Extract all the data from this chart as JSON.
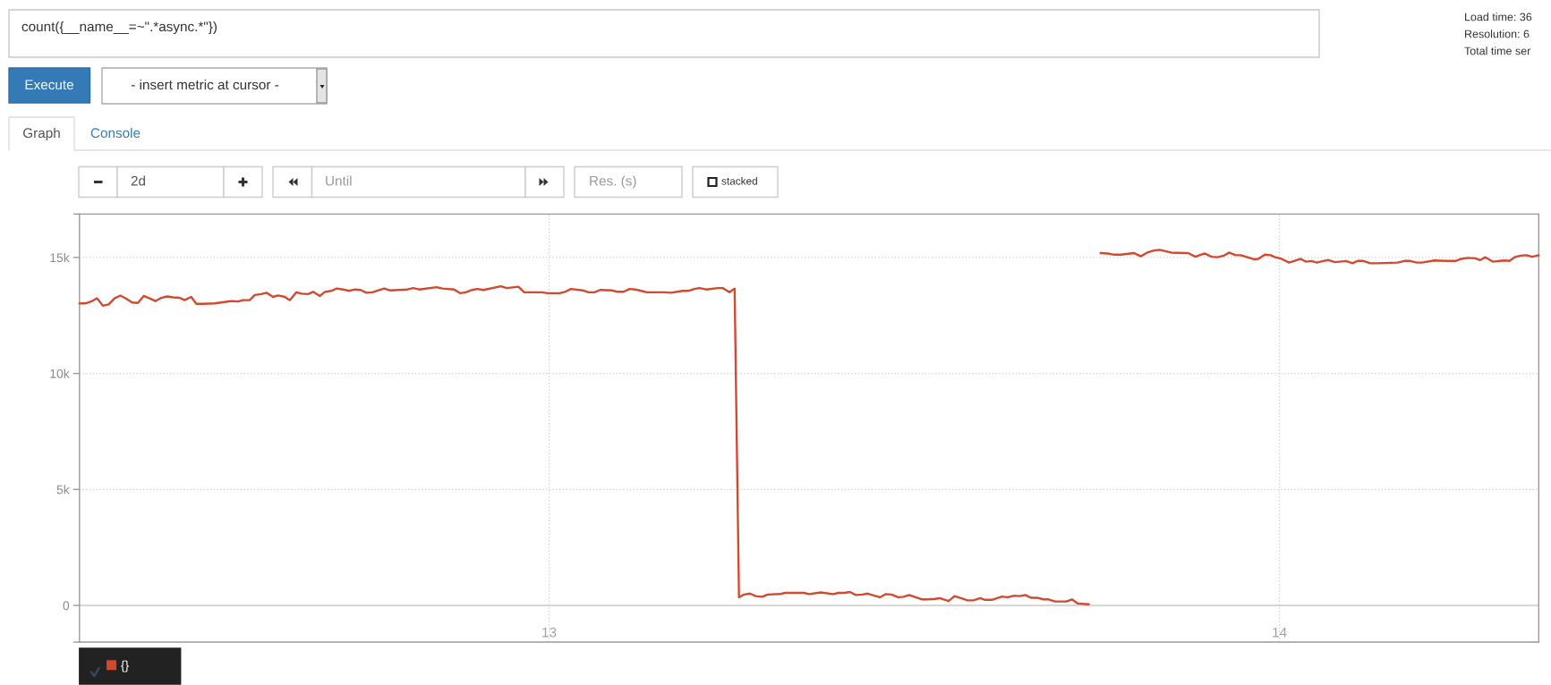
{
  "chart_data": {
    "type": "line",
    "annotations": [
      "count({__name__=~\".*async.*\"})",
      "Execute",
      "- insert metric at cursor -",
      "Graph",
      "Console",
      "2d",
      "Until",
      "Res. (s)",
      "stacked",
      "Load time: 36",
      "Resolution: 6",
      "Total time ser"
    ],
    "x": [
      12.357,
      12.365,
      12.373,
      12.381,
      12.389,
      12.397,
      12.405,
      12.413,
      12.421,
      12.429,
      12.437,
      12.445,
      12.453,
      12.461,
      12.469,
      12.477,
      12.485,
      12.494,
      12.501,
      12.51,
      12.517,
      12.526,
      12.542,
      12.565,
      12.574,
      12.581,
      12.59,
      12.597,
      12.606,
      12.613,
      12.622,
      12.629,
      12.638,
      12.645,
      12.654,
      12.661,
      12.67,
      12.677,
      12.686,
      12.693,
      12.702,
      12.709,
      12.718,
      12.726,
      12.734,
      12.742,
      12.75,
      12.758,
      12.774,
      12.782,
      12.806,
      12.814,
      12.822,
      12.846,
      12.854,
      12.87,
      12.878,
      12.886,
      12.894,
      12.902,
      12.91,
      12.934,
      12.942,
      12.958,
      12.966,
      12.99,
      12.998,
      13.014,
      13.022,
      13.03,
      13.046,
      13.054,
      13.062,
      13.07,
      13.086,
      13.094,
      13.102,
      13.11,
      13.118,
      13.126,
      13.134,
      13.158,
      13.167,
      13.183,
      13.19,
      13.199,
      13.206,
      13.215,
      13.231,
      13.238,
      13.247,
      13.254,
      13.26,
      13.267,
      13.275,
      13.283,
      13.292,
      13.299,
      13.316,
      13.323,
      13.349,
      13.356,
      13.372,
      13.389,
      13.396,
      13.404,
      13.412,
      13.42,
      13.429,
      13.436,
      13.453,
      13.461,
      13.469,
      13.478,
      13.485,
      13.493,
      13.502,
      13.511,
      13.518,
      13.528,
      13.535,
      13.547,
      13.555,
      13.564,
      13.573,
      13.581,
      13.59,
      13.597,
      13.606,
      13.62,
      13.628,
      13.637,
      13.644,
      13.652,
      13.66,
      13.668,
      13.677,
      13.684,
      13.693,
      13.708,
      13.716,
      13.724,
      13.739,
      13.747,
      13.755,
      13.765,
      13.774,
      13.783,
      13.801,
      13.81,
      13.819,
      13.828,
      13.836,
      13.845,
      13.852,
      13.87,
      13.875,
      13.885,
      13.892,
      13.898,
      13.907,
      13.915,
      13.924,
      13.931,
      13.94,
      13.947,
      13.956,
      13.965,
      13.971,
      13.98,
      13.988,
      13.994,
      14.003,
      14.013,
      14.02,
      14.029,
      14.036,
      14.044,
      14.051,
      14.06,
      14.067,
      14.076,
      14.091,
      14.1,
      14.107,
      14.115,
      14.124,
      14.133,
      14.162,
      14.171,
      14.179,
      14.188,
      14.195,
      14.212,
      14.228,
      14.241,
      14.249,
      14.258,
      14.268,
      14.275,
      14.282,
      14.292,
      14.302,
      14.308,
      14.315,
      14.322,
      14.33,
      14.338,
      14.346,
      14.355
    ],
    "series": [
      {
        "name": "{}",
        "color": "#d1492e",
        "values": [
          13020,
          13020,
          13100,
          13240,
          12920,
          12980,
          13240,
          13360,
          13220,
          13060,
          13040,
          13340,
          13240,
          13120,
          13260,
          13320,
          13280,
          13260,
          13160,
          13300,
          13000,
          13000,
          13020,
          13120,
          13100,
          13160,
          13160,
          13380,
          13420,
          13480,
          13300,
          13360,
          13300,
          13160,
          13500,
          13440,
          13420,
          13520,
          13340,
          13520,
          13560,
          13660,
          13620,
          13560,
          13620,
          13600,
          13480,
          13500,
          13660,
          13580,
          13620,
          13680,
          13620,
          13720,
          13660,
          13620,
          13460,
          13500,
          13600,
          13640,
          13600,
          13760,
          13680,
          13740,
          13500,
          13500,
          13460,
          13460,
          13520,
          13640,
          13580,
          13500,
          13500,
          13600,
          13580,
          13520,
          13520,
          13640,
          13620,
          13560,
          13500,
          13500,
          13480,
          13560,
          13560,
          13640,
          13680,
          13620,
          13680,
          13680,
          13500,
          13660,
          350,
          470,
          510,
          400,
          370,
          470,
          490,
          540,
          540,
          490,
          560,
          490,
          540,
          540,
          580,
          450,
          470,
          510,
          350,
          490,
          470,
          350,
          370,
          450,
          350,
          260,
          260,
          280,
          310,
          190,
          400,
          310,
          220,
          220,
          310,
          240,
          240,
          380,
          350,
          420,
          400,
          450,
          330,
          330,
          260,
          260,
          170,
          170,
          260,
          80,
          50,
          null,
          15190,
          15170,
          15120,
          15120,
          15190,
          15050,
          15210,
          15300,
          15330,
          15260,
          15210,
          15190,
          15190,
          15030,
          15120,
          15170,
          15030,
          15010,
          15080,
          15210,
          15100,
          15100,
          15010,
          14920,
          14940,
          15120,
          15100,
          15010,
          14940,
          14780,
          14850,
          14940,
          14820,
          14850,
          14780,
          14850,
          14890,
          14800,
          14850,
          14750,
          14850,
          14850,
          14750,
          14750,
          14780,
          14850,
          14850,
          14780,
          14780,
          14870,
          14850,
          14850,
          14940,
          14980,
          14960,
          14890,
          15010,
          14820,
          14850,
          14870,
          14850,
          15010,
          15080,
          15100,
          15030,
          15100
        ]
      }
    ],
    "xlim": [
      12.357,
      14.355
    ],
    "xticks": [
      13,
      14
    ],
    "ylim": [
      -1580,
      16870
    ],
    "yticks": [
      {
        "value": -1580,
        "label": null
      },
      0,
      {
        "value": 5000,
        "label": "5k"
      },
      {
        "value": 10000,
        "label": "10k"
      },
      {
        "value": 15000,
        "label": "15k"
      },
      {
        "value": 16870,
        "label": null
      }
    ],
    "grid": true,
    "legend": "bottom left",
    "ref_lines": [
      {
        "axis": "y",
        "value": 0,
        "color": "#d6d6d6"
      }
    ]
  }
}
